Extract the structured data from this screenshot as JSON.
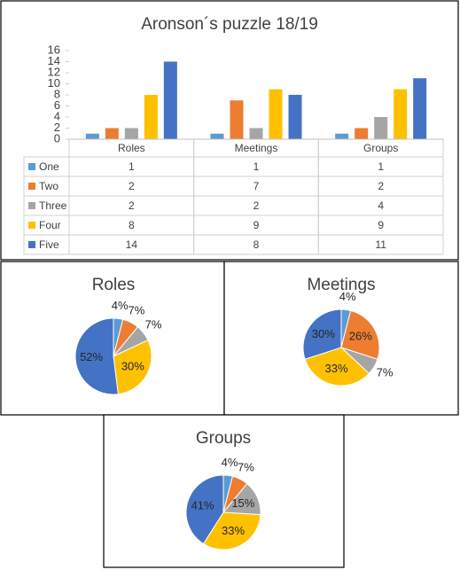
{
  "chart_data": [
    {
      "type": "bar",
      "title": "Aronson´s puzzle 18/19",
      "categories": [
        "Roles",
        "Meetings",
        "Groups"
      ],
      "series": [
        {
          "name": "One",
          "color": "#5b9bd5",
          "values": [
            1,
            1,
            1
          ]
        },
        {
          "name": "Two",
          "color": "#ed7d31",
          "values": [
            2,
            7,
            2
          ]
        },
        {
          "name": "Three",
          "color": "#a5a5a5",
          "values": [
            2,
            2,
            4
          ]
        },
        {
          "name": "Four",
          "color": "#ffc000",
          "values": [
            8,
            9,
            9
          ]
        },
        {
          "name": "Five",
          "color": "#4472c4",
          "values": [
            14,
            8,
            11
          ]
        }
      ],
      "ylim": [
        0,
        16
      ],
      "yticks": [
        0,
        2,
        4,
        6,
        8,
        10,
        12,
        14,
        16
      ],
      "grid": false
    },
    {
      "type": "pie",
      "title": "Roles",
      "values": [
        4,
        7,
        7,
        30,
        52
      ],
      "value_labels": [
        "4%",
        "7%",
        "7%",
        "30%",
        "52%"
      ],
      "colors": [
        "#5b9bd5",
        "#ed7d31",
        "#a5a5a5",
        "#ffc000",
        "#4472c4"
      ]
    },
    {
      "type": "pie",
      "title": "Meetings",
      "values": [
        4,
        26,
        7,
        33,
        30
      ],
      "value_labels": [
        "4%",
        "26%",
        "7%",
        "33%",
        "30%"
      ],
      "colors": [
        "#5b9bd5",
        "#ed7d31",
        "#a5a5a5",
        "#ffc000",
        "#4472c4"
      ]
    },
    {
      "type": "pie",
      "title": "Groups",
      "values": [
        4,
        7,
        15,
        33,
        41
      ],
      "value_labels": [
        "4%",
        "7%",
        "15%",
        "33%",
        "41%"
      ],
      "colors": [
        "#5b9bd5",
        "#ed7d31",
        "#a5a5a5",
        "#ffc000",
        "#4472c4"
      ]
    }
  ]
}
